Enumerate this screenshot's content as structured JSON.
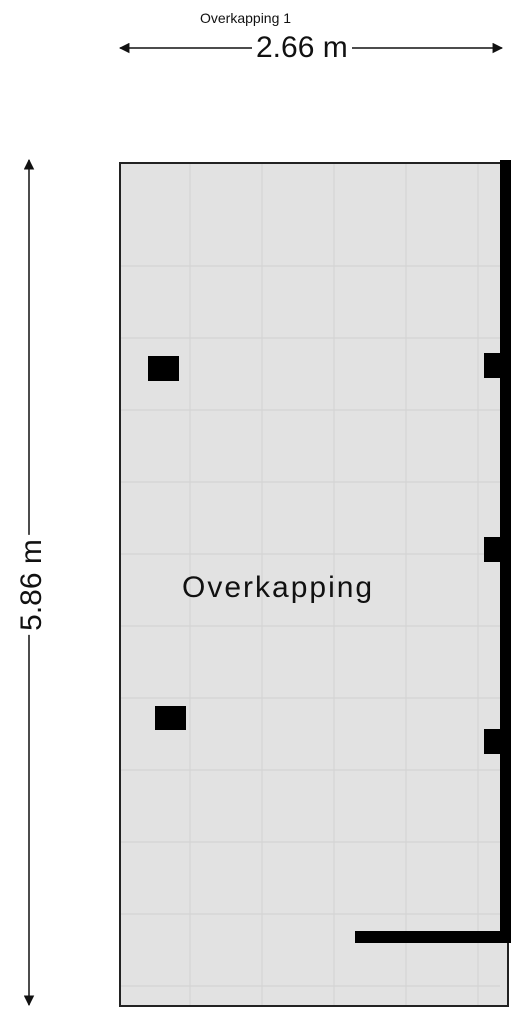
{
  "plan": {
    "title": "Overkapping 1",
    "width_dimension": "2.66 m",
    "height_dimension": "5.86 m",
    "room_name": "Overkapping"
  },
  "colors": {
    "floor": "#e2e2e2",
    "tile_lines": "#d6d6d6",
    "walls": "#000000",
    "dimension_lines": "#111111"
  }
}
